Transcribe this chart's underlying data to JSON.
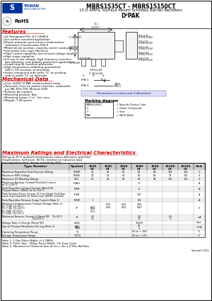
{
  "title1": "MBRS1535CT - MBRS15150CT",
  "title2": "15.0 AMPS, Surface Mount Schottky Barrier Rectifiers",
  "title3": "D²PAK",
  "ratings_note1": "Rating at 25°C ambient temperature unless otherwise specified.",
  "ratings_note2": "Single phase, half wave, 60 Hz, resistive or inductive load",
  "ratings_note3": "For capacitive load, derate current by 20%",
  "notes": [
    "Note 1: 2.0μs Pulse Width, f=1.0MHz",
    "Note 2: Pulse Test : 300μs Pulse Width, 1% Duty Cycle",
    "Note 3: Mounted on Heatsink Size of 2in x 3in x 0.25in Al-Plate"
  ],
  "version": "Version G11",
  "bg_color": "#ffffff",
  "red_color": "#cc0000",
  "blue_color": "#003399"
}
